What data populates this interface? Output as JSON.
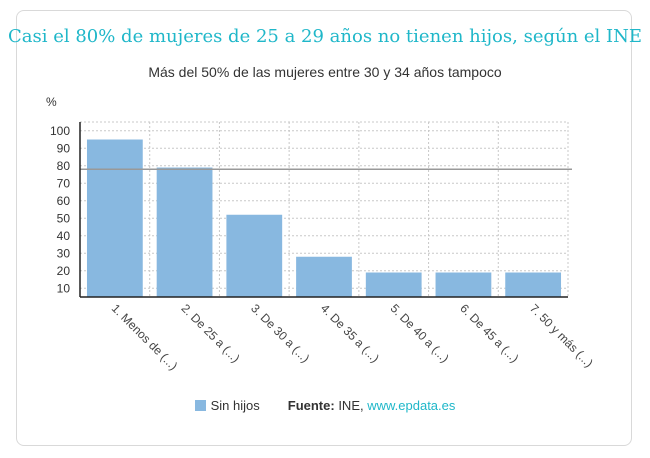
{
  "colors": {
    "title": "#1fb7c9",
    "bar": "#88b8e0",
    "refline": "#999999",
    "grid": "#c8c8c8",
    "axis": "#222222",
    "link": "#1fb7c9"
  },
  "header": {
    "title": "Casi el 80% de mujeres de 25 a 29 años no tienen hijos, según el INE",
    "subtitle": "Más del 50% de las mujeres entre 30 y 34 años tampoco"
  },
  "chart_data": {
    "type": "bar",
    "unit_label": "%",
    "categories": [
      "1. Menos de (...)",
      "2. De 25 a (...)",
      "3. De 30 a (...)",
      "4. De 35 a (...)",
      "5. De 40 a (...)",
      "6. De 45 a (...)",
      "7. 50 y más (...)"
    ],
    "series": [
      {
        "name": "Sin hijos",
        "values": [
          95,
          79,
          52,
          28,
          19,
          19,
          19
        ]
      }
    ],
    "ylim": [
      5,
      105
    ],
    "yticks": [
      10,
      20,
      30,
      40,
      50,
      60,
      70,
      80,
      90,
      100
    ],
    "reference_line": 78,
    "grid": true
  },
  "legend": {
    "series_label": "Sin hijos",
    "source_label": "Fuente:",
    "source_text": " INE, ",
    "source_link": "www.epdata.es"
  }
}
